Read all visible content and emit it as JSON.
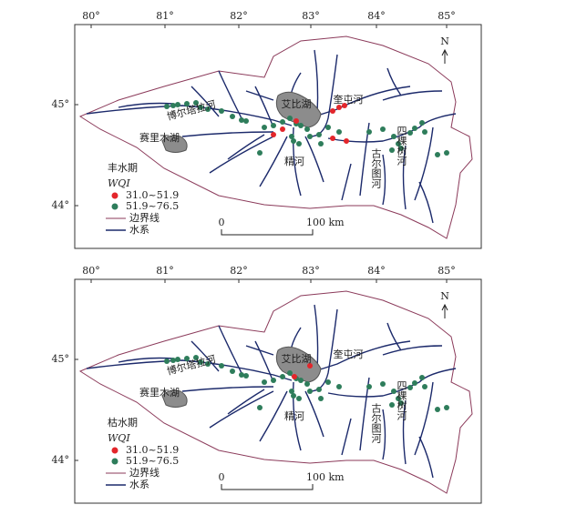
{
  "panels": [
    {
      "season": "丰水期",
      "lon_labels": [
        "80°",
        "81°",
        "82°",
        "83°",
        "84°",
        "85°"
      ],
      "lat_labels": [
        "45°",
        "44°"
      ],
      "north": "N",
      "places": [
        "博尔塔拉河",
        "赛里木湖",
        "艾比湖",
        "奎屯河",
        "精河",
        "古尔图河",
        "四棵树河"
      ],
      "legend": {
        "title": "WQI",
        "classes": [
          "31.0~51.9",
          "51.9~76.5"
        ],
        "boundary": "边界线",
        "river": "水系"
      },
      "scale": {
        "start": "0",
        "end": "100 km"
      }
    },
    {
      "season": "枯水期",
      "lon_labels": [
        "80°",
        "81°",
        "82°",
        "83°",
        "84°",
        "85°"
      ],
      "lat_labels": [
        "45°",
        "44°"
      ],
      "north": "N",
      "places": [
        "博尔塔拉河",
        "赛里木湖",
        "艾比湖",
        "奎屯河",
        "精河",
        "古尔图河",
        "四棵树河"
      ],
      "legend": {
        "title": "WQI",
        "classes": [
          "31.0~51.9",
          "51.9~76.5"
        ],
        "boundary": "边界线",
        "river": "水系"
      },
      "scale": {
        "start": "0",
        "end": "100 km"
      }
    }
  ]
}
